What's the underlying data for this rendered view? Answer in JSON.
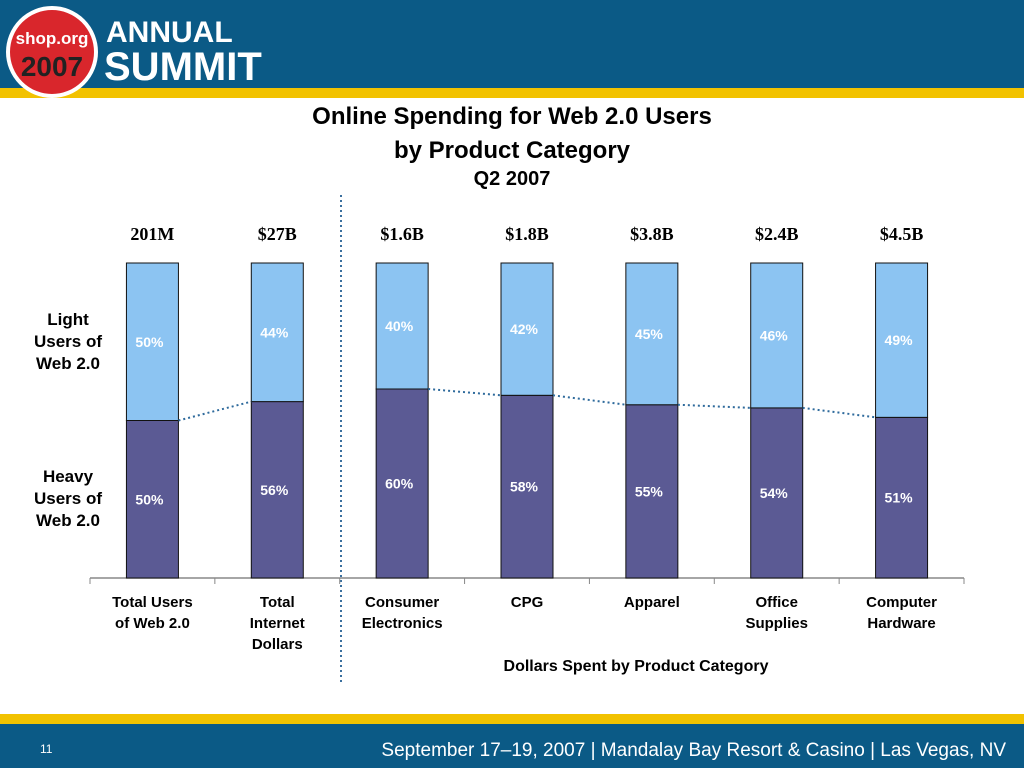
{
  "header": {
    "logo_site": "shop.org",
    "logo_year": "2007",
    "logo_line1": "ANNUAL",
    "logo_line2": "SUMMIT"
  },
  "chart_data": {
    "type": "stacked_bar",
    "title": "Online Spending for Web 2.0 Users\nby Product Category",
    "subtitle": "Q2 2007",
    "x_label": "Dollars Spent by Product Category",
    "categories": [
      "Total Users\nof Web 2.0",
      "Total\nInternet\nDollars",
      "Consumer\nElectronics",
      "CPG",
      "Apparel",
      "Office\nSupplies",
      "Computer\nHardware"
    ],
    "top_labels": [
      "201M",
      "$27B",
      "$1.6B",
      "$1.8B",
      "$3.8B",
      "$2.4B",
      "$4.5B"
    ],
    "ylim": [
      0,
      100
    ],
    "series": [
      {
        "name": "Heavy\nUsers of\nWeb 2.0",
        "color": "#5b5a94",
        "values": [
          50,
          56,
          60,
          58,
          55,
          54,
          51
        ],
        "value_labels": [
          "50%",
          "56%",
          "60%",
          "58%",
          "55%",
          "54%",
          "51%"
        ]
      },
      {
        "name": "Light\nUsers of\nWeb 2.0",
        "color": "#8cc4f2",
        "values": [
          50,
          44,
          40,
          42,
          45,
          46,
          49
        ],
        "value_labels": [
          "50%",
          "44%",
          "40%",
          "42%",
          "45%",
          "46%",
          "49%"
        ]
      }
    ]
  },
  "footer": {
    "page": "11",
    "event": "September 17–19, 2007  |  Mandalay Bay Resort & Casino  |  Las Vegas, NV"
  }
}
